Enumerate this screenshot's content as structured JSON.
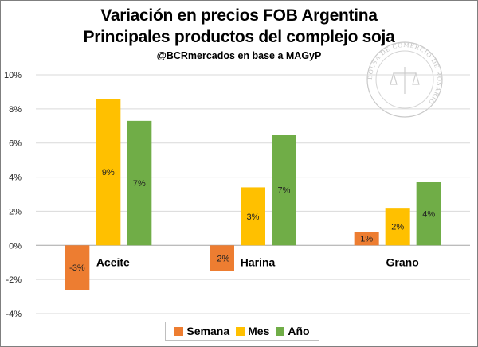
{
  "chart_data": {
    "type": "bar",
    "title": [
      "Variación en precios FOB Argentina",
      "Principales productos del complejo soja"
    ],
    "subtitle": "@BCRmercados en base a MAGyP",
    "categories": [
      "Aceite",
      "Harina",
      "Grano"
    ],
    "series": [
      {
        "name": "Semana",
        "color": "#ED7D31",
        "values": [
          -2.6,
          -1.5,
          0.8
        ],
        "labels": [
          "-3%",
          "-2%",
          "1%"
        ]
      },
      {
        "name": "Mes",
        "color": "#FFC000",
        "values": [
          8.6,
          3.4,
          2.2
        ],
        "labels": [
          "9%",
          "3%",
          "2%"
        ]
      },
      {
        "name": "Año",
        "color": "#70AD47",
        "values": [
          7.3,
          6.5,
          3.7
        ],
        "labels": [
          "7%",
          "7%",
          "4%"
        ]
      }
    ],
    "ylim": [
      -4,
      10
    ],
    "yticks": [
      -4,
      -2,
      0,
      2,
      4,
      6,
      8,
      10
    ],
    "ytick_labels": [
      "-4%",
      "-2%",
      "0%",
      "2%",
      "4%",
      "6%",
      "8%",
      "10%"
    ],
    "grid": true,
    "legend_position": "bottom",
    "watermark_text": "BOLSA DE COMERCIO DE ROSARIO"
  }
}
